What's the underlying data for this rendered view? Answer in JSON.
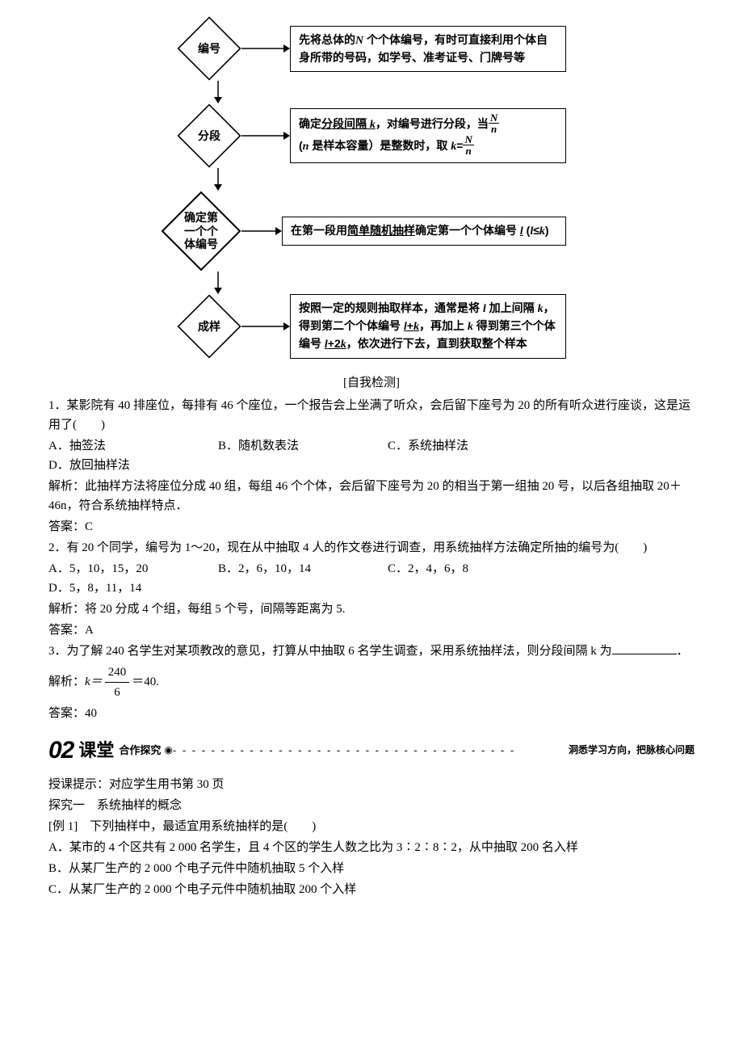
{
  "flowchart": {
    "nodes": [
      {
        "id": "n1",
        "label": "编号",
        "size": "small"
      },
      {
        "id": "n2",
        "label": "分段",
        "size": "small"
      },
      {
        "id": "n3",
        "label": "确定第\n一个个\n体编号",
        "size": "large"
      },
      {
        "id": "n4",
        "label": "成样",
        "size": "small"
      }
    ],
    "boxes": [
      {
        "id": "b1",
        "html": "先将总体的<span class='italic-i'>N</span> 个个体编号，有时可直接利用个体自身所带的号码，如学号、准考证号、门牌号等"
      },
      {
        "id": "b2",
        "html": "确定<span class='ul'>分段间隔 <span class='italic-i'>k</span></span>，对编号进行分段，当<span class='frac'><span class='num'><span class='italic-i'>N</span></span><span class='den'><span class='italic-i'>n</span></span></span><br>(<span class='italic-i'>n</span> 是样本容量）是整数时，取 <span class='italic-i'>k</span>=<span class='frac'><span class='num'><span class='italic-i'>N</span></span><span class='den'><span class='italic-i'>n</span></span></span>"
      },
      {
        "id": "b3",
        "html": "在第一段用<span class='ul'>简单随机抽样</span>确定第一个个体编号 <span class='italic-i ul'>l</span> (<span class='italic-i'>l</span>≤<span class='italic-i'>k</span>)"
      },
      {
        "id": "b4",
        "html": "按照一定的规则抽取样本，通常是将 <span class='italic-i'>l</span> 加上间隔 <span class='italic-i'>k</span>，得到第二个个体编号 <span class='ul'><span class='italic-i'>l</span>+<span class='italic-i'>k</span></span>，再加上 <span class='italic-i'>k</span> 得到第三个个体编号 <span class='ul'><span class='italic-i'>l</span>+2<span class='italic-i'>k</span></span>，依次进行下去，直到获取整个样本"
      }
    ],
    "border_color": "#000000",
    "background_color": "#ffffff"
  },
  "selftest_title": "[自我检测]",
  "q1": {
    "stem": "1．某影院有 40 排座位，每排有 46 个座位，一个报告会上坐满了听众，会后留下座号为 20 的所有听众进行座谈，这是运用了(　　)",
    "A": "A．抽签法",
    "B": "B．随机数表法",
    "C": "C．系统抽样法",
    "D": "D．放回抽样法",
    "analysis": "解析：此抽样方法将座位分成 40 组，每组 46 个个体，会后留下座号为 20 的相当于第一组抽 20 号，以后各组抽取 20＋46n，符合系统抽样特点．",
    "answer": "答案：C"
  },
  "q2": {
    "stem": "2．有 20 个同学，编号为 1～20，现在从中抽取 4 人的作文卷进行调查，用系统抽样方法确定所抽的编号为(　　)",
    "A": "A．5，10，15，20",
    "B": "B．2，6，10，14",
    "C": "C．2，4，6，8",
    "D": "D．5，8，11，14",
    "analysis": "解析：将 20 分成 4 个组，每组 5 个号，间隔等距离为 5.",
    "answer": "答案：A"
  },
  "q3": {
    "stem_pre": "3．为了解 240 名学生对某项教改的意见，打算从中抽取 6 名学生调查，采用系统抽样法，则分段间隔 k 为",
    "stem_post": "．",
    "analysis_pre": "解析：",
    "frac_num": "240",
    "frac_den": "6",
    "analysis_post": "＝40.",
    "k_eq": "k＝",
    "answer": "答案：40"
  },
  "banner": {
    "num": "02",
    "title": "课堂",
    "sub": "合作探究",
    "dots": "- - - - - - - - - - - - - - - - - - - - - - - - - - - - - - - - - - - -",
    "tail": "洞悉学习方向，把脉核心问题"
  },
  "hint": "授课提示：对应学生用书第 30 页",
  "explore_title": "探究一　系统抽样的概念",
  "ex1": {
    "stem": "[例 1]　下列抽样中，最适宜用系统抽样的是(　　)",
    "A": "A．某市的 4 个区共有 2 000 名学生，且 4 个区的学生人数之比为 3∶2∶8∶2，从中抽取 200 名入样",
    "B": "B．从某厂生产的 2 000 个电子元件中随机抽取 5 个入样",
    "C": "C．从某厂生产的 2 000 个电子元件中随机抽取 200 个入样"
  }
}
